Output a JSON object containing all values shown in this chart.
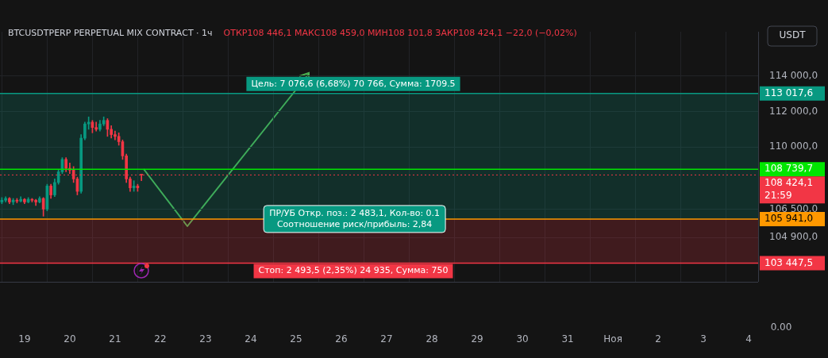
{
  "chart_data": {
    "type": "candlestick",
    "title": "BTCUSDTPERP PERPETUAL MIX CONTRACT · 1ч",
    "subtitle": "ОТКР108 446,1  МАКС108 459,0  МИН108 101,8  ЗАКР108 424,1  −22,0 (−0,02%)",
    "x": [
      "--10-18T12:00",
      "--10-18T14:00",
      "--10-18T16:00",
      "--10-18T18:00",
      "--10-18T20:00",
      "--10-18T22:00",
      "--10-19T00:00",
      "--10-19T02:00",
      "--10-19T04:00",
      "--10-19T06:00",
      "--10-19T08:00",
      "--10-19T10:00",
      "--10-19T12:00",
      "--10-19T14:00",
      "--10-19T16:00",
      "--10-19T18:00",
      "--10-19T20:00",
      "--10-19T22:00",
      "--10-20T00:00",
      "--10-20T02:00",
      "--10-20T04:00",
      "--10-20T06:00",
      "--10-20T08:00",
      "--10-20T10:00",
      "--10-20T12:00",
      "--10-20T14:00",
      "--10-20T16:00",
      "--10-20T18:00",
      "--10-20T20:00",
      "--10-20T22:00",
      "--10-21T00:00",
      "--10-21T02:00",
      "--10-21T04:00",
      "--10-21T06:00",
      "--10-21T08:00",
      "--10-21T10:00",
      "--10-21T12:00",
      "--10-21T14:00"
    ],
    "ohlc": [
      [
        106900,
        107150,
        106800,
        107000
      ],
      [
        107000,
        107200,
        106900,
        107100
      ],
      [
        107100,
        107150,
        106800,
        106900
      ],
      [
        106900,
        107100,
        106750,
        107000
      ],
      [
        107000,
        107100,
        106850,
        106950
      ],
      [
        106950,
        107200,
        106900,
        107050
      ],
      [
        107050,
        107100,
        106800,
        106900
      ],
      [
        106900,
        107150,
        106850,
        107050
      ],
      [
        107050,
        107100,
        106900,
        107000
      ],
      [
        107000,
        107050,
        106700,
        106900
      ],
      [
        106900,
        107200,
        106850,
        107100
      ],
      [
        107100,
        107150,
        106100,
        106500
      ],
      [
        106500,
        107900,
        106400,
        107800
      ],
      [
        107800,
        107900,
        107100,
        107300
      ],
      [
        107300,
        108200,
        107200,
        108000
      ],
      [
        108000,
        108700,
        107900,
        108600
      ],
      [
        108600,
        109400,
        108500,
        109300
      ],
      [
        109300,
        109400,
        108600,
        108800
      ],
      [
        108800,
        109100,
        108500,
        108700
      ],
      [
        108700,
        108900,
        108000,
        108200
      ],
      [
        108200,
        108300,
        107300,
        107500
      ],
      [
        107500,
        110700,
        107400,
        110500
      ],
      [
        110500,
        111400,
        110400,
        111300
      ],
      [
        111300,
        111700,
        111000,
        111400
      ],
      [
        111400,
        111500,
        110800,
        111100
      ],
      [
        111100,
        111400,
        110900,
        111000
      ],
      [
        111000,
        111500,
        110900,
        111300
      ],
      [
        111300,
        111700,
        111200,
        111500
      ],
      [
        111500,
        111600,
        110600,
        111000
      ],
      [
        111000,
        111200,
        110500,
        110700
      ],
      [
        110700,
        110900,
        110400,
        110600
      ],
      [
        110600,
        110800,
        110100,
        110300
      ],
      [
        110300,
        110400,
        109300,
        109500
      ],
      [
        109500,
        109600,
        108000,
        108200
      ],
      [
        108200,
        108300,
        107500,
        107700
      ],
      [
        107700,
        108100,
        107500,
        107800
      ],
      [
        107800,
        107900,
        107500,
        107700
      ],
      [
        108446.1,
        108459,
        108101.8,
        108424.1
      ]
    ],
    "xlim": [
      "--10-18T11:00",
      "--11-04T05:00"
    ],
    "xticks": [
      {
        "value": "--10-19",
        "label": "19"
      },
      {
        "value": "--10-20",
        "label": "20"
      },
      {
        "value": "--10-21",
        "label": "21"
      },
      {
        "value": "--10-22",
        "label": "22"
      },
      {
        "value": "--10-23",
        "label": "23"
      },
      {
        "value": "--10-24",
        "label": "24"
      },
      {
        "value": "--10-25",
        "label": "25"
      },
      {
        "value": "--10-26",
        "label": "26"
      },
      {
        "value": "--10-27",
        "label": "27"
      },
      {
        "value": "--10-28",
        "label": "28"
      },
      {
        "value": "--10-29",
        "label": "29"
      },
      {
        "value": "--10-30",
        "label": "30"
      },
      {
        "value": "--10-31",
        "label": "31"
      },
      {
        "value": "--11-01",
        "label": "Ноя"
      },
      {
        "value": "--11-02",
        "label": "2"
      },
      {
        "value": "--11-03",
        "label": "3"
      },
      {
        "value": "--11-04",
        "label": "4"
      }
    ],
    "ylim": [
      102400,
      116500
    ],
    "yticks": [
      {
        "value": 104900,
        "label": "104 900,0"
      },
      {
        "value": 106500,
        "label": "106 500,0"
      },
      {
        "value": 110000,
        "label": "110 000,0"
      },
      {
        "value": 112000,
        "label": "112 000,0"
      },
      {
        "value": 114000,
        "label": "114 000,0"
      }
    ],
    "grid": true,
    "bands": [
      {
        "axis": "y",
        "from": 105941,
        "to": 113017.6,
        "label": "Цель: 7 076,6 (6,68%) 70 766, Сумма: 1709.5",
        "color": "#089981"
      },
      {
        "axis": "y",
        "from": 103447.5,
        "to": 105941,
        "label": "Стоп: 2 493,5 (2,35%) 24 935, Сумма: 750",
        "color": "#f23645"
      }
    ],
    "ref_lines": [
      {
        "axis": "y",
        "value": 108739.7,
        "label": "108 739,7",
        "color": "#00e600",
        "line_style": "solid"
      },
      {
        "axis": "y",
        "value": 108424.1,
        "label": "108 424,1",
        "color": "#f23645",
        "line_style": "dotted"
      },
      {
        "axis": "y",
        "value": 105941,
        "label": "105 941,0",
        "color": "#ff9800",
        "line_style": "solid"
      },
      {
        "axis": "y",
        "value": 113017.6,
        "label": "113 017,6",
        "color": "#089981",
        "line_style": "solid"
      },
      {
        "axis": "y",
        "value": 103447.5,
        "label": "103 447,5",
        "color": "#f23645",
        "line_style": "solid"
      }
    ],
    "annotations": [
      {
        "text": "ПР/УБ Откр. поз.: 2 483,1, Кол-во: 0.1\nСоотношение риск/прибыль: 2,84",
        "x": "--10-26T07:00",
        "y": 105941
      },
      "21:59",
      "USDT",
      "0.00"
    ]
  }
}
